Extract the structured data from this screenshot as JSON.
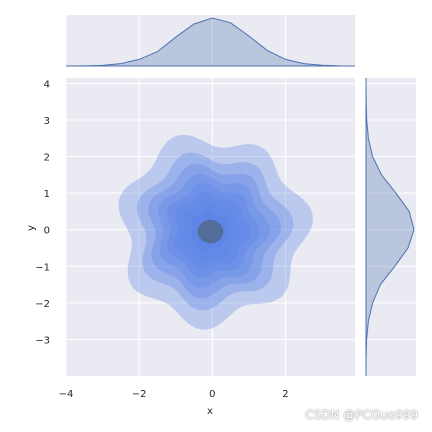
{
  "chart_data": {
    "type": "joint-kde",
    "xlabel": "x",
    "ylabel": "y",
    "xlim": [
      -4,
      3.9
    ],
    "ylim": [
      -4,
      4.15
    ],
    "xticks": [
      -4,
      -2,
      0,
      2
    ],
    "yticks": [
      -3,
      -2,
      -1,
      0,
      1,
      2,
      3,
      4
    ],
    "grid": true,
    "background": "#eaeaf2",
    "fill_color": "#4c72b0",
    "contour_color": "#5b82e6",
    "joint_kde": {
      "center": [
        0,
        0
      ],
      "levels": [
        {
          "level": 1,
          "radius": 2.5
        },
        {
          "level": 2,
          "radius": 2.02
        },
        {
          "level": 3,
          "radius": 1.72
        },
        {
          "level": 4,
          "radius": 1.46
        },
        {
          "level": 5,
          "radius": 1.22
        },
        {
          "level": 6,
          "radius": 1.0
        },
        {
          "level": 7,
          "radius": 0.78
        },
        {
          "level": 8,
          "radius": 0.52
        }
      ]
    },
    "marginal_x": {
      "x": [
        -4,
        -3.5,
        -3,
        -2.5,
        -2,
        -1.5,
        -1,
        -0.5,
        0,
        0.5,
        1,
        1.5,
        2,
        2.5,
        3,
        3.5,
        3.9
      ],
      "density": [
        0.0,
        0.001,
        0.005,
        0.02,
        0.055,
        0.12,
        0.24,
        0.35,
        0.4,
        0.36,
        0.25,
        0.13,
        0.055,
        0.02,
        0.006,
        0.001,
        0.0
      ]
    },
    "marginal_y": {
      "y": [
        -4,
        -3.5,
        -3,
        -2.5,
        -2,
        -1.5,
        -1,
        -0.5,
        0,
        0.5,
        1,
        1.5,
        2,
        2.5,
        3,
        3.5,
        4,
        4.15
      ],
      "density": [
        0.0,
        0.001,
        0.005,
        0.02,
        0.055,
        0.12,
        0.24,
        0.35,
        0.4,
        0.36,
        0.25,
        0.13,
        0.055,
        0.02,
        0.006,
        0.002,
        0.0,
        0.0
      ]
    }
  },
  "watermark": "CSDN @PCGuo999"
}
